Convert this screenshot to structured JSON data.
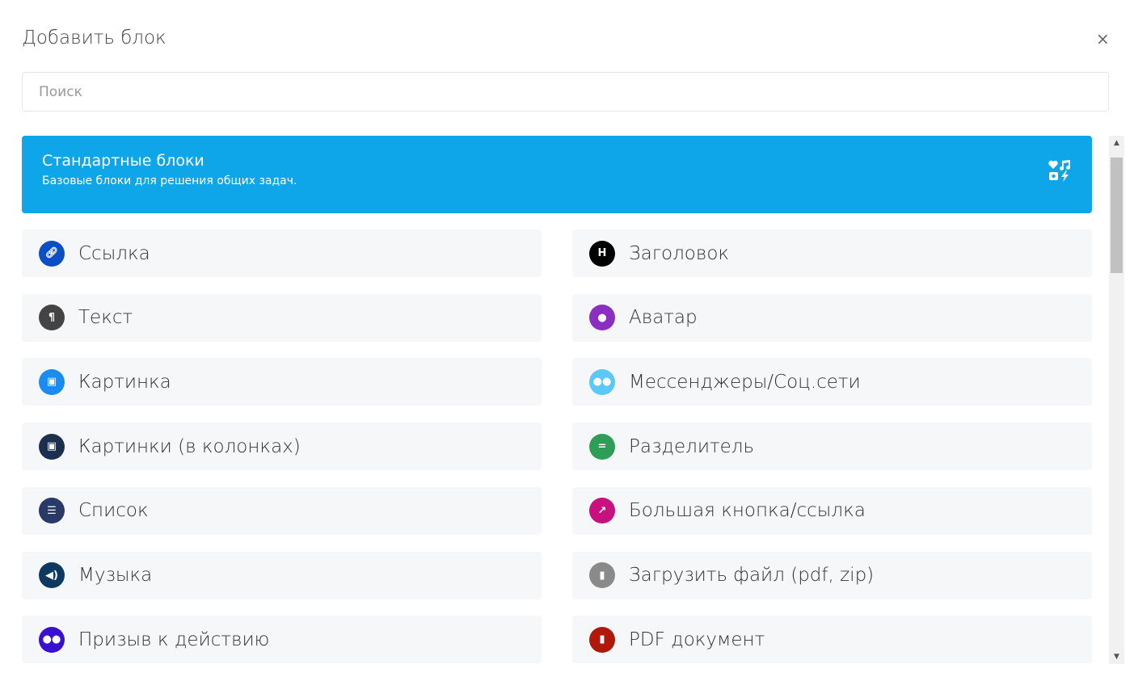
{
  "dialog": {
    "title": "Добавить блок",
    "close": "×"
  },
  "search": {
    "placeholder": "Поиск",
    "value": ""
  },
  "banner": {
    "title": "Стандартные блоки",
    "subtitle": "Базовые блоки для решения общих задач.",
    "icon": "shapes-icon",
    "color": "#0ea5e9"
  },
  "blocks": [
    {
      "label": "Ссылка",
      "icon": "link-icon",
      "glyph": "🔗︎",
      "color": "#0b4fc4"
    },
    {
      "label": "Заголовок",
      "icon": "heading-icon",
      "glyph": "H",
      "color": "#000000"
    },
    {
      "label": "Текст",
      "icon": "paragraph-icon",
      "glyph": "¶",
      "color": "#444444"
    },
    {
      "label": "Аватар",
      "icon": "user-icon",
      "glyph": "●",
      "color": "#8a2fc0"
    },
    {
      "label": "Картинка",
      "icon": "image-icon",
      "glyph": "▣",
      "color": "#1a8cf0"
    },
    {
      "label": "Мессенджеры/Соц.сети",
      "icon": "users-icon",
      "glyph": "●●",
      "color": "#5cc8f5"
    },
    {
      "label": "Картинки (в колонках)",
      "icon": "images-icon",
      "glyph": "▣",
      "color": "#1b2f4e"
    },
    {
      "label": "Разделитель",
      "icon": "equals-icon",
      "glyph": "=",
      "color": "#2e9e56"
    },
    {
      "label": "Список",
      "icon": "list-icon",
      "glyph": "☰",
      "color": "#2a3a66"
    },
    {
      "label": "Большая кнопка/ссылка",
      "icon": "external-link-icon",
      "glyph": "↗",
      "color": "#c8107f"
    },
    {
      "label": "Музыка",
      "icon": "volume-icon",
      "glyph": "◀)",
      "color": "#0d3a5e"
    },
    {
      "label": "Загрузить файл (pdf, zip)",
      "icon": "file-icon",
      "glyph": "▮",
      "color": "#8a8a8a"
    },
    {
      "label": "Призыв к действию",
      "icon": "comments-icon",
      "glyph": "●●",
      "color": "#3a10d0"
    },
    {
      "label": "PDF документ",
      "icon": "file-pdf-icon",
      "glyph": "▮",
      "color": "#b0180c"
    }
  ]
}
